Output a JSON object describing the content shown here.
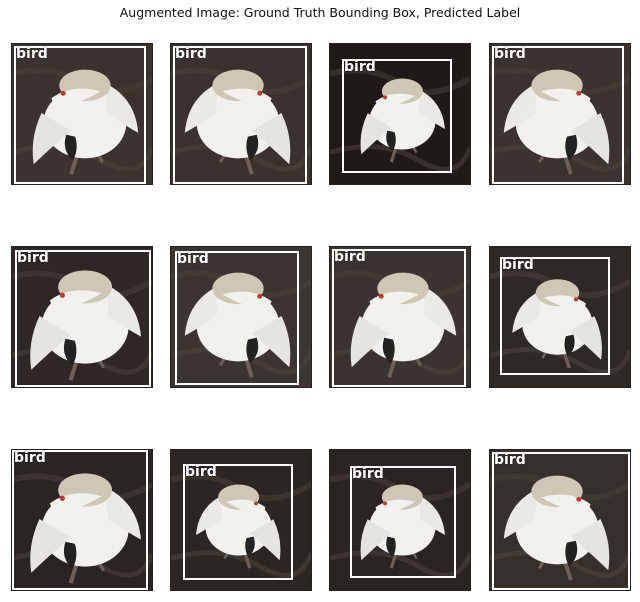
{
  "figure": {
    "title": "Augmented Image: Ground Truth Bounding Box, Predicted Label"
  },
  "panels": [
    {
      "label": "bird",
      "flip": false,
      "scale": 1.0,
      "background": "#3b332f"
    },
    {
      "label": "bird",
      "flip": true,
      "scale": 1.0,
      "background": "#3a322e"
    },
    {
      "label": "bird",
      "flip": false,
      "scale": 0.8,
      "background": "#1f1a18"
    },
    {
      "label": "bird",
      "flip": true,
      "scale": 1.0,
      "background": "#3b332f"
    },
    {
      "label": "bird",
      "flip": false,
      "scale": 1.05,
      "background": "#2e2725"
    },
    {
      "label": "bird",
      "flip": true,
      "scale": 1.0,
      "background": "#3c3430"
    },
    {
      "label": "bird",
      "flip": false,
      "scale": 1.0,
      "background": "#3a332f"
    },
    {
      "label": "bird",
      "flip": true,
      "scale": 0.85,
      "background": "#2f2926"
    },
    {
      "label": "bird",
      "flip": false,
      "scale": 1.05,
      "background": "#2a2422"
    },
    {
      "label": "bird",
      "flip": true,
      "scale": 0.8,
      "background": "#2c2623"
    },
    {
      "label": "bird",
      "flip": false,
      "scale": 0.8,
      "background": "#2a2422"
    },
    {
      "label": "bird",
      "flip": true,
      "scale": 1.0,
      "background": "#35302c"
    }
  ],
  "colors": {
    "box": "#ffffff",
    "label": "#ffffff",
    "swan_body": "#f2f1ee",
    "swan_head": "#cfc7b5",
    "beak": "#222222"
  }
}
